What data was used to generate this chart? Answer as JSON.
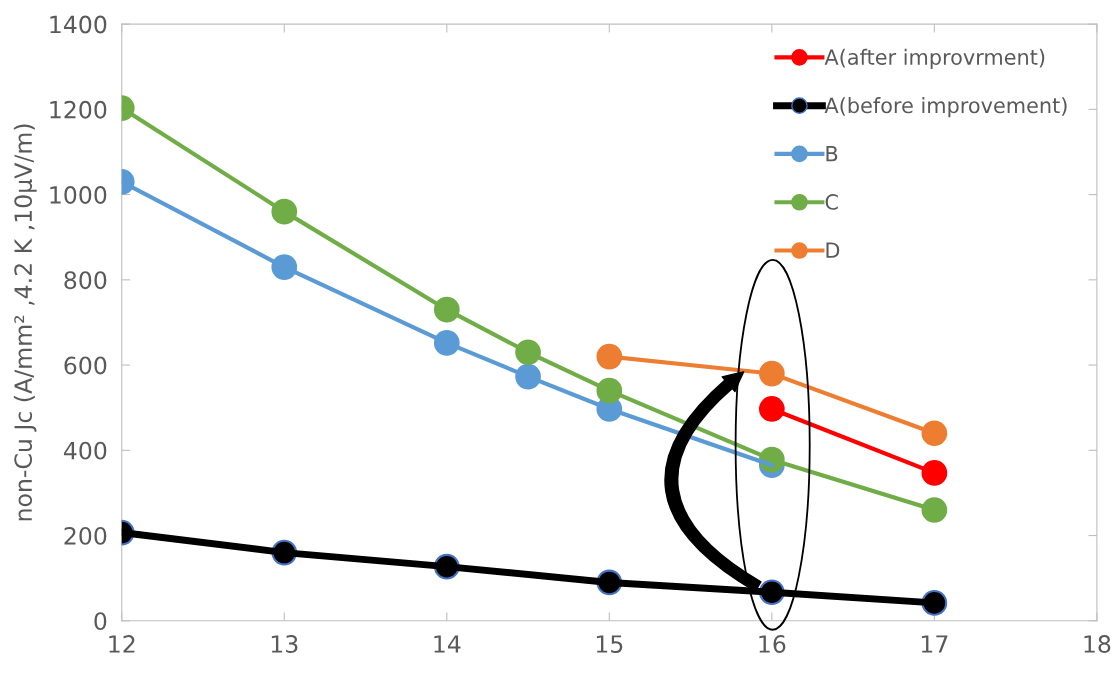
{
  "chart_data": {
    "type": "line",
    "ylabel": "non-Cu Jc (A/mm² ,4.2 K ,10μV/m)",
    "xlim": [
      12,
      18
    ],
    "xticks": [
      12,
      13,
      14,
      15,
      16,
      17,
      18
    ],
    "ylim": [
      0,
      1400
    ],
    "yticks": [
      0,
      200,
      400,
      600,
      800,
      1000,
      1200,
      1400
    ],
    "grid": false,
    "legend": "top right",
    "marker": "circle",
    "line_style": "solid",
    "series": [
      {
        "name": "A(after improvrment)",
        "color": "#ff0000",
        "x": [
          16,
          17
        ],
        "values": [
          497,
          347
        ]
      },
      {
        "name": "A(before improvement)",
        "color": "#000000",
        "x": [
          12,
          13,
          14,
          15,
          16,
          17
        ],
        "values": [
          207,
          160,
          127,
          90,
          67,
          42
        ]
      },
      {
        "name": "B",
        "color": "#5b9bd5",
        "x": [
          12,
          13,
          14,
          14.5,
          15,
          16
        ],
        "values": [
          1030,
          830,
          652,
          573,
          497,
          365
        ]
      },
      {
        "name": "C",
        "color": "#70ad47",
        "x": [
          12,
          13,
          14,
          14.5,
          15,
          16,
          17
        ],
        "values": [
          1203,
          960,
          730,
          630,
          540,
          378,
          260
        ]
      },
      {
        "name": "D",
        "color": "#ed7d31",
        "x": [
          15,
          16,
          17
        ],
        "values": [
          620,
          580,
          440
        ]
      }
    ]
  }
}
